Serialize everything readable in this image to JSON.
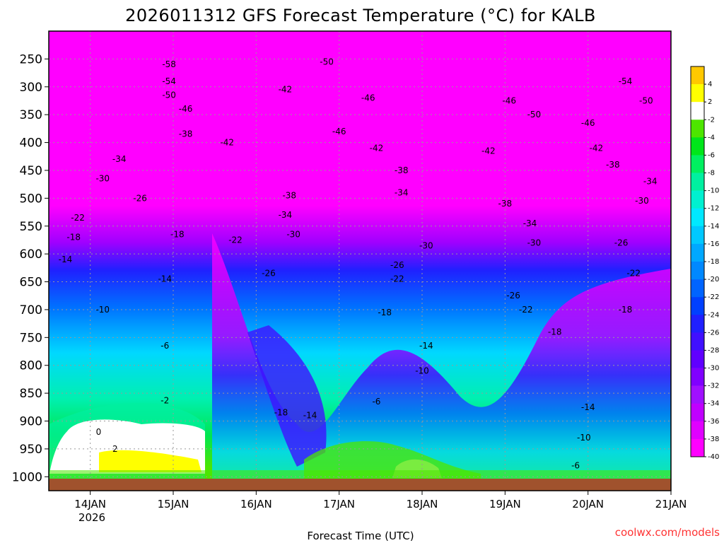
{
  "chart_data": {
    "type": "heatmap",
    "title": "2026011312 GFS Forecast Temperature (°C) for KALB",
    "xlabel": "Forecast Time (UTC)",
    "ylabel": "",
    "credit": "coolwx.com/models",
    "x_ticks": [
      "14JAN",
      "15JAN",
      "16JAN",
      "17JAN",
      "18JAN",
      "19JAN",
      "20JAN",
      "21JAN"
    ],
    "x_tick_sublabel": "2026",
    "x_range_days": [
      13.5,
      21.0
    ],
    "y_axis": "pressure (hPa), reversed",
    "y_ticks": [
      250,
      300,
      350,
      400,
      450,
      500,
      550,
      600,
      650,
      700,
      750,
      800,
      850,
      900,
      950,
      1000
    ],
    "y_range": [
      200,
      1025
    ],
    "colorbar": {
      "ticks": [
        4,
        2,
        -2,
        -4,
        -6,
        -8,
        -10,
        -12,
        -14,
        -16,
        -18,
        -20,
        -22,
        -24,
        -26,
        -28,
        -30,
        -32,
        -34,
        -36,
        -38,
        -40
      ],
      "colors": [
        "#ffc800",
        "#ffff00",
        "#ffffff",
        "#4de600",
        "#00e61a",
        "#00f060",
        "#00f0a0",
        "#00f0d0",
        "#00e8ff",
        "#00c8ff",
        "#00a8ff",
        "#0088ff",
        "#0064ff",
        "#0040ff",
        "#2020ff",
        "#4010ff",
        "#6000ff",
        "#8000ff",
        "#a010ff",
        "#c000ff",
        "#e000ff",
        "#ff00ff"
      ]
    },
    "contour_labels": [
      {
        "text": "-58",
        "day": 14.95,
        "p": 265
      },
      {
        "text": "-54",
        "day": 14.95,
        "p": 295
      },
      {
        "text": "-50",
        "day": 14.95,
        "p": 320
      },
      {
        "text": "-46",
        "day": 15.15,
        "p": 345
      },
      {
        "text": "-38",
        "day": 15.15,
        "p": 390
      },
      {
        "text": "-42",
        "day": 15.65,
        "p": 405
      },
      {
        "text": "-34",
        "day": 14.35,
        "p": 435
      },
      {
        "text": "-30",
        "day": 14.15,
        "p": 470
      },
      {
        "text": "-26",
        "day": 14.6,
        "p": 505
      },
      {
        "text": "-22",
        "day": 13.85,
        "p": 540
      },
      {
        "text": "-18",
        "day": 13.8,
        "p": 575
      },
      {
        "text": "-18",
        "day": 15.05,
        "p": 570
      },
      {
        "text": "-22",
        "day": 15.75,
        "p": 580
      },
      {
        "text": "-14",
        "day": 13.7,
        "p": 615
      },
      {
        "text": "-14",
        "day": 14.9,
        "p": 650
      },
      {
        "text": "-10",
        "day": 14.15,
        "p": 705
      },
      {
        "text": "-6",
        "day": 14.9,
        "p": 770
      },
      {
        "text": "-2",
        "day": 14.9,
        "p": 868
      },
      {
        "text": "0",
        "day": 14.1,
        "p": 925
      },
      {
        "text": "2",
        "day": 14.3,
        "p": 955
      },
      {
        "text": "-42",
        "day": 16.35,
        "p": 310
      },
      {
        "text": "-38",
        "day": 16.4,
        "p": 500
      },
      {
        "text": "-34",
        "day": 16.35,
        "p": 535
      },
      {
        "text": "-30",
        "day": 16.45,
        "p": 570
      },
      {
        "text": "-26",
        "day": 16.15,
        "p": 640
      },
      {
        "text": "-18",
        "day": 16.3,
        "p": 890
      },
      {
        "text": "-14",
        "day": 16.65,
        "p": 895
      },
      {
        "text": "-50",
        "day": 16.85,
        "p": 260
      },
      {
        "text": "-46",
        "day": 17.35,
        "p": 325
      },
      {
        "text": "-46",
        "day": 17.0,
        "p": 385
      },
      {
        "text": "-42",
        "day": 17.45,
        "p": 415
      },
      {
        "text": "-38",
        "day": 17.75,
        "p": 455
      },
      {
        "text": "-34",
        "day": 17.75,
        "p": 495
      },
      {
        "text": "-30",
        "day": 18.05,
        "p": 590
      },
      {
        "text": "-26",
        "day": 17.7,
        "p": 625
      },
      {
        "text": "-22",
        "day": 17.7,
        "p": 650
      },
      {
        "text": "-18",
        "day": 17.55,
        "p": 710
      },
      {
        "text": "-14",
        "day": 18.05,
        "p": 770
      },
      {
        "text": "-10",
        "day": 18.0,
        "p": 815
      },
      {
        "text": "-6",
        "day": 17.45,
        "p": 870
      },
      {
        "text": "-46",
        "day": 19.05,
        "p": 330
      },
      {
        "text": "-50",
        "day": 19.35,
        "p": 355
      },
      {
        "text": "-42",
        "day": 18.8,
        "p": 420
      },
      {
        "text": "-38",
        "day": 19.0,
        "p": 515
      },
      {
        "text": "-34",
        "day": 19.3,
        "p": 550
      },
      {
        "text": "-30",
        "day": 19.35,
        "p": 585
      },
      {
        "text": "-26",
        "day": 19.1,
        "p": 680
      },
      {
        "text": "-22",
        "day": 19.25,
        "p": 705
      },
      {
        "text": "-18",
        "day": 19.6,
        "p": 745
      },
      {
        "text": "-54",
        "day": 20.45,
        "p": 295
      },
      {
        "text": "-50",
        "day": 20.7,
        "p": 330
      },
      {
        "text": "-46",
        "day": 20.0,
        "p": 370
      },
      {
        "text": "-42",
        "day": 20.1,
        "p": 415
      },
      {
        "text": "-38",
        "day": 20.3,
        "p": 445
      },
      {
        "text": "-34",
        "day": 20.75,
        "p": 475
      },
      {
        "text": "-30",
        "day": 20.65,
        "p": 510
      },
      {
        "text": "-26",
        "day": 20.4,
        "p": 585
      },
      {
        "text": "-22",
        "day": 20.55,
        "p": 640
      },
      {
        "text": "-18",
        "day": 20.45,
        "p": 705
      },
      {
        "text": "-14",
        "day": 20.0,
        "p": 880
      },
      {
        "text": "-10",
        "day": 19.95,
        "p": 935
      },
      {
        "text": "-6",
        "day": 19.85,
        "p": 985
      }
    ]
  }
}
